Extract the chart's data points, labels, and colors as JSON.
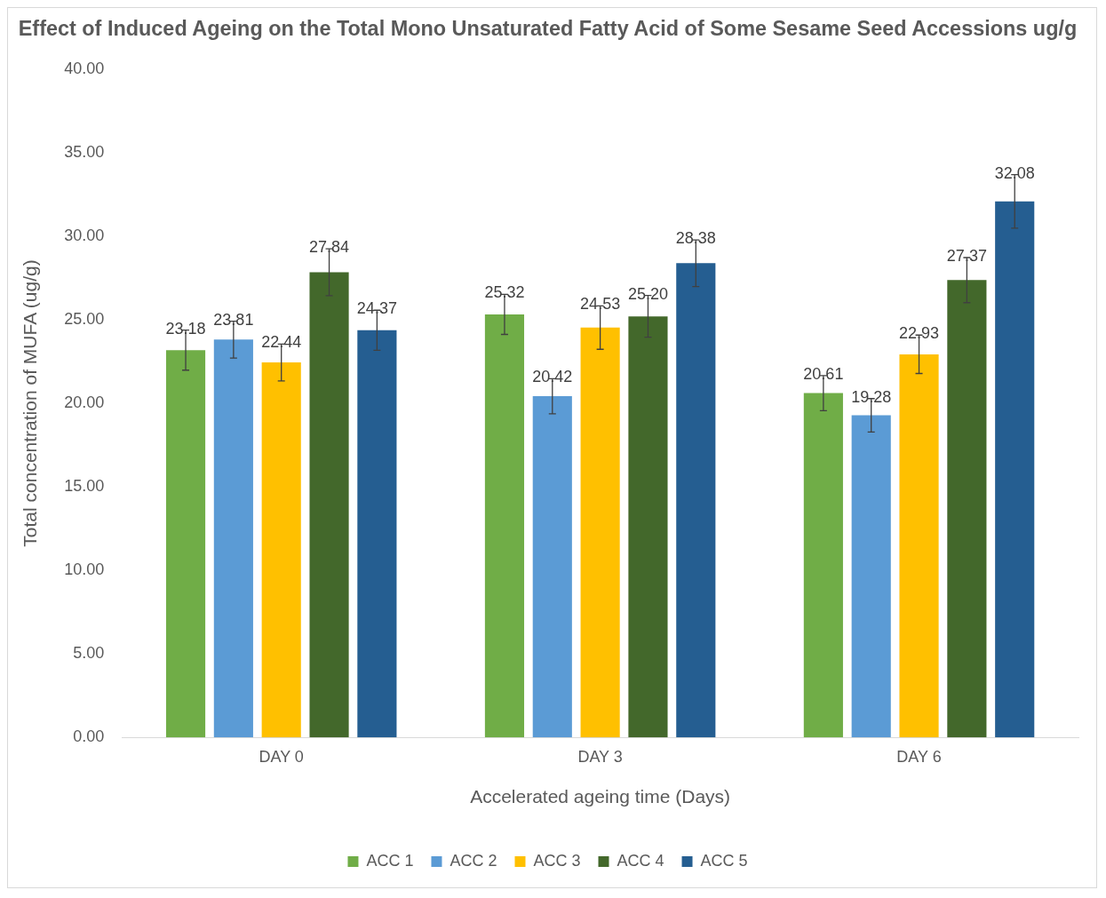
{
  "chart_data": {
    "type": "bar",
    "title": "Effect of Induced Ageing on the Total Mono Unsaturated Fatty Acid of Some Sesame Seed Accessions ug/g",
    "xlabel": "Accelerated ageing time (Days)",
    "ylabel": "Total concentration of MUFA (ug/g)",
    "categories": [
      "DAY 0",
      "DAY 3",
      "DAY 6"
    ],
    "series": [
      {
        "name": "ACC 1",
        "color": "#70ad47",
        "values": [
          23.18,
          25.32,
          20.61
        ],
        "value_labels": [
          "23.18",
          "25.32",
          "20.61"
        ],
        "errors": [
          1.2,
          1.2,
          1.05
        ]
      },
      {
        "name": "ACC 2",
        "color": "#5b9bd5",
        "values": [
          23.81,
          20.42,
          19.28
        ],
        "value_labels": [
          "23.81",
          "20.42",
          "19.28"
        ],
        "errors": [
          1.1,
          1.05,
          1.0
        ]
      },
      {
        "name": "ACC 3",
        "color": "#ffc000",
        "values": [
          22.44,
          24.53,
          22.93
        ],
        "value_labels": [
          "22.44",
          "24.53",
          "22.93"
        ],
        "errors": [
          1.1,
          1.3,
          1.15
        ]
      },
      {
        "name": "ACC 4",
        "color": "#43682b",
        "values": [
          27.84,
          25.2,
          27.37
        ],
        "value_labels": [
          "27.84",
          "25.20",
          "27.37"
        ],
        "errors": [
          1.4,
          1.25,
          1.35
        ]
      },
      {
        "name": "ACC 5",
        "color": "#255e91",
        "values": [
          24.37,
          28.38,
          32.08
        ],
        "value_labels": [
          "24.37",
          "28.38",
          "32.08"
        ],
        "errors": [
          1.2,
          1.4,
          1.6
        ]
      }
    ],
    "ylim": [
      0,
      40
    ],
    "yticks": [
      {
        "value": 0,
        "label": "0.00"
      },
      {
        "value": 5,
        "label": "5.00"
      },
      {
        "value": 10,
        "label": "10.00"
      },
      {
        "value": 15,
        "label": "15.00"
      },
      {
        "value": 20,
        "label": "20.00"
      },
      {
        "value": 25,
        "label": "25.00"
      },
      {
        "value": 30,
        "label": "30.00"
      },
      {
        "value": 35,
        "label": "35.00"
      },
      {
        "value": 40,
        "label": "40.00"
      }
    ],
    "grid": false,
    "legend": "bottom"
  }
}
